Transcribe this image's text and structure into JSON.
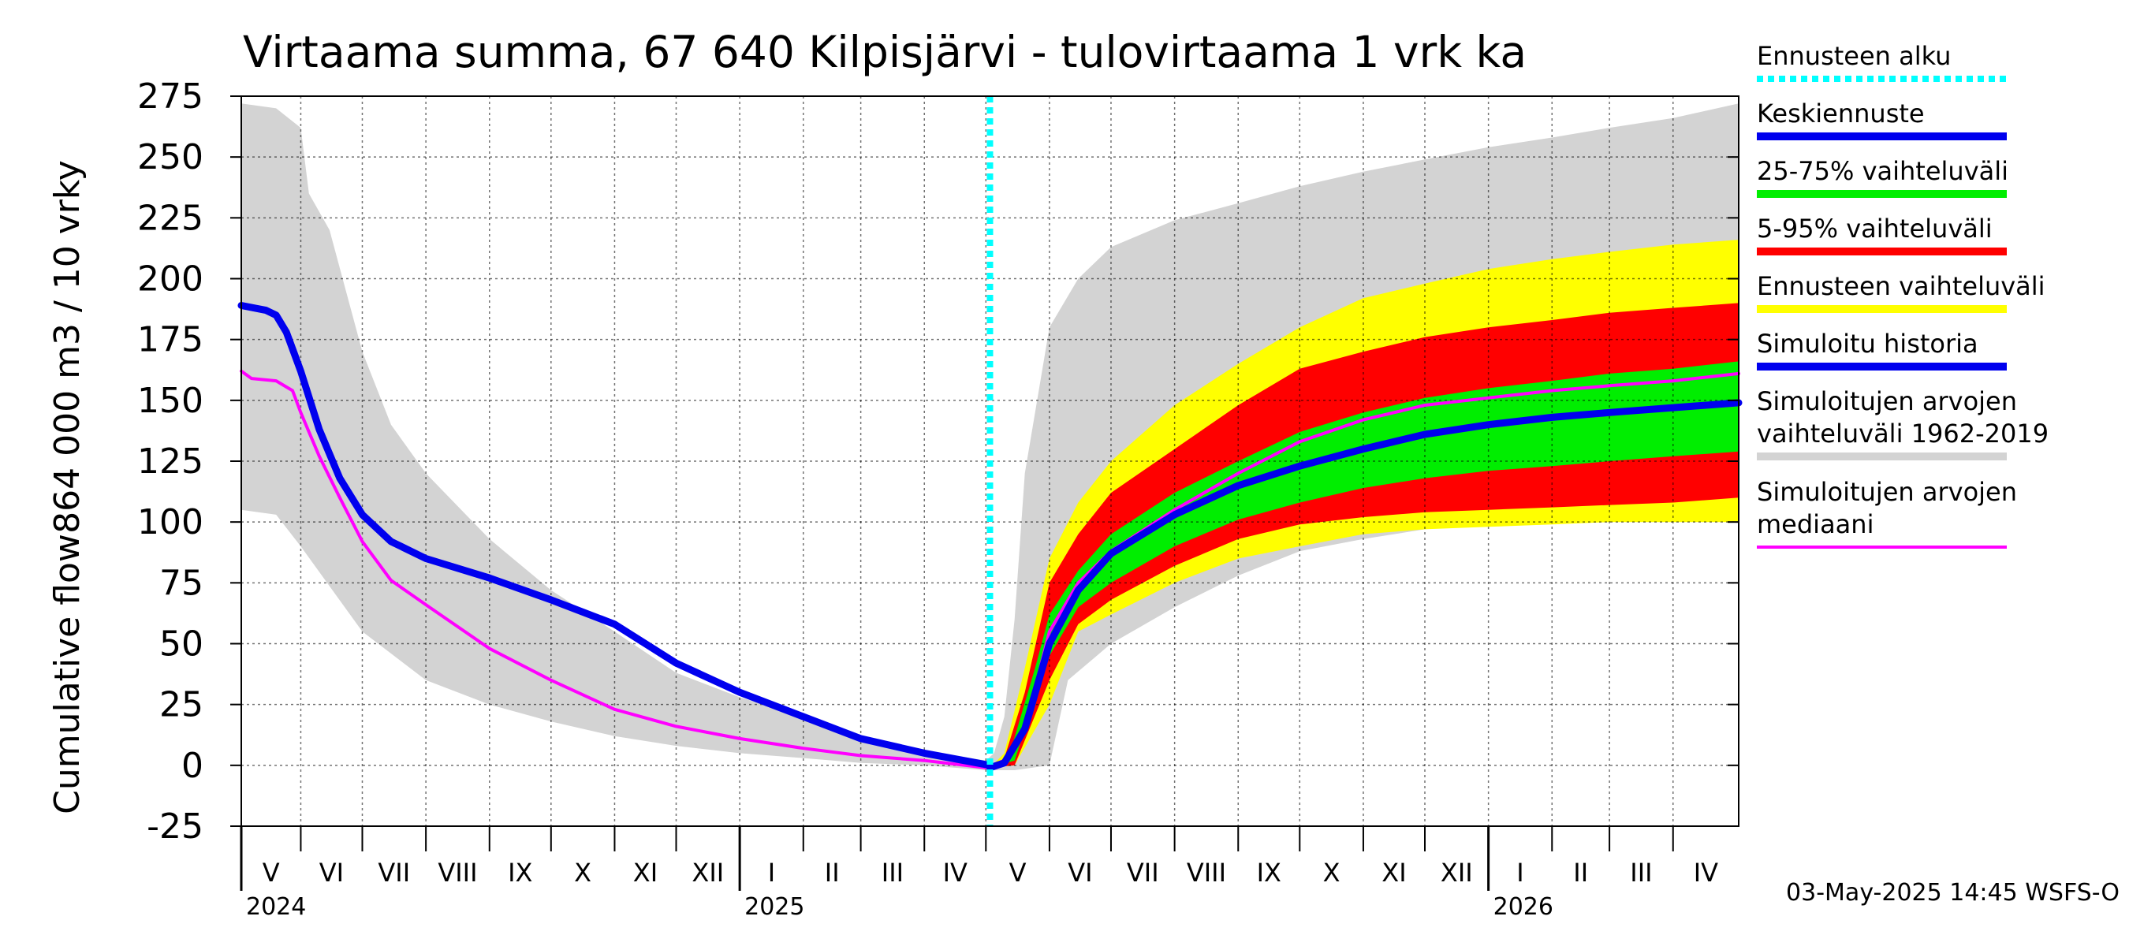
{
  "chart_data": {
    "type": "area",
    "title": "Virtaama summa, 67 640 Kilpisjärvi - tulovirtaama 1 vrk ka",
    "ylabel_top": "864 000 m3 / 10 vrky",
    "ylabel_bottom": "Cumulative flow",
    "ylim": [
      -25,
      275
    ],
    "yticks": [
      -25,
      0,
      25,
      50,
      75,
      100,
      125,
      150,
      175,
      200,
      225,
      250,
      275
    ],
    "xlim": [
      "2024-05-03",
      "2026-05-03"
    ],
    "grid": true,
    "legend_position": "right",
    "forecast_start": "2025-05-03",
    "months": [
      {
        "label": "V",
        "start": "2024-05-01"
      },
      {
        "label": "VI",
        "start": "2024-06-01"
      },
      {
        "label": "VII",
        "start": "2024-07-01"
      },
      {
        "label": "VIII",
        "start": "2024-08-01"
      },
      {
        "label": "IX",
        "start": "2024-09-01"
      },
      {
        "label": "X",
        "start": "2024-10-01"
      },
      {
        "label": "XI",
        "start": "2024-11-01"
      },
      {
        "label": "XII",
        "start": "2024-12-01"
      },
      {
        "label": "I",
        "start": "2025-01-01"
      },
      {
        "label": "II",
        "start": "2025-02-01"
      },
      {
        "label": "III",
        "start": "2025-03-01"
      },
      {
        "label": "IV",
        "start": "2025-04-01"
      },
      {
        "label": "V",
        "start": "2025-05-01"
      },
      {
        "label": "VI",
        "start": "2025-06-01"
      },
      {
        "label": "VII",
        "start": "2025-07-01"
      },
      {
        "label": "VIII",
        "start": "2025-08-01"
      },
      {
        "label": "IX",
        "start": "2025-09-01"
      },
      {
        "label": "X",
        "start": "2025-10-01"
      },
      {
        "label": "XI",
        "start": "2025-11-01"
      },
      {
        "label": "XII",
        "start": "2025-12-01"
      },
      {
        "label": "I",
        "start": "2026-01-01"
      },
      {
        "label": "II",
        "start": "2026-02-01"
      },
      {
        "label": "III",
        "start": "2026-03-01"
      },
      {
        "label": "IV",
        "start": "2026-04-01"
      }
    ],
    "years": [
      {
        "label": "2024",
        "start": "2024-05-03"
      },
      {
        "label": "2025",
        "start": "2025-01-01"
      },
      {
        "label": "2026",
        "start": "2026-01-01"
      }
    ],
    "bands": [
      {
        "name": "Simuloitujen arvojen vaihteluväli 1962-2019",
        "color": "#d3d3d3",
        "upper": [
          [
            "2024-05-03",
            272
          ],
          [
            "2024-05-20",
            270
          ],
          [
            "2024-06-01",
            262
          ],
          [
            "2024-06-05",
            235
          ],
          [
            "2024-06-15",
            220
          ],
          [
            "2024-07-01",
            170
          ],
          [
            "2024-07-15",
            140
          ],
          [
            "2024-08-01",
            120
          ],
          [
            "2024-09-01",
            93
          ],
          [
            "2024-10-01",
            72
          ],
          [
            "2024-11-01",
            55
          ],
          [
            "2024-12-01",
            38
          ],
          [
            "2025-01-01",
            28
          ],
          [
            "2025-02-01",
            20
          ],
          [
            "2025-03-01",
            12
          ],
          [
            "2025-04-01",
            6
          ],
          [
            "2025-05-01",
            2
          ],
          [
            "2025-05-05",
            5
          ],
          [
            "2025-05-10",
            20
          ],
          [
            "2025-05-15",
            60
          ],
          [
            "2025-05-20",
            120
          ],
          [
            "2025-06-01",
            180
          ],
          [
            "2025-06-15",
            200
          ],
          [
            "2025-07-01",
            213
          ],
          [
            "2025-08-01",
            224
          ],
          [
            "2025-09-01",
            231
          ],
          [
            "2025-10-01",
            238
          ],
          [
            "2025-11-01",
            244
          ],
          [
            "2025-12-01",
            249
          ],
          [
            "2026-01-01",
            254
          ],
          [
            "2026-02-01",
            258
          ],
          [
            "2026-03-01",
            262
          ],
          [
            "2026-04-01",
            266
          ],
          [
            "2026-05-03",
            272
          ]
        ],
        "lower": [
          [
            "2024-05-03",
            105
          ],
          [
            "2024-05-20",
            103
          ],
          [
            "2024-06-01",
            90
          ],
          [
            "2024-07-01",
            55
          ],
          [
            "2024-08-01",
            35
          ],
          [
            "2024-09-01",
            25
          ],
          [
            "2024-10-01",
            18
          ],
          [
            "2024-11-01",
            12
          ],
          [
            "2024-12-01",
            8
          ],
          [
            "2025-01-01",
            5
          ],
          [
            "2025-02-01",
            3
          ],
          [
            "2025-03-01",
            1
          ],
          [
            "2025-04-01",
            0
          ],
          [
            "2025-05-01",
            -2
          ],
          [
            "2025-05-15",
            -2
          ],
          [
            "2025-06-01",
            0
          ],
          [
            "2025-06-10",
            35
          ],
          [
            "2025-07-01",
            50
          ],
          [
            "2025-08-01",
            65
          ],
          [
            "2025-09-01",
            78
          ],
          [
            "2025-10-01",
            88
          ],
          [
            "2025-11-01",
            93
          ],
          [
            "2025-12-01",
            97
          ],
          [
            "2026-01-01",
            99
          ],
          [
            "2026-02-01",
            100
          ],
          [
            "2026-03-01",
            101
          ],
          [
            "2026-04-01",
            102
          ],
          [
            "2026-05-03",
            102
          ]
        ]
      },
      {
        "name": "Ennusteen vaihteluväli",
        "color": "#ffff00",
        "upper": [
          [
            "2025-05-03",
            -1
          ],
          [
            "2025-05-10",
            5
          ],
          [
            "2025-05-20",
            40
          ],
          [
            "2025-06-01",
            85
          ],
          [
            "2025-06-15",
            108
          ],
          [
            "2025-07-01",
            125
          ],
          [
            "2025-08-01",
            148
          ],
          [
            "2025-09-01",
            165
          ],
          [
            "2025-10-01",
            180
          ],
          [
            "2025-11-01",
            192
          ],
          [
            "2025-12-01",
            198
          ],
          [
            "2026-01-01",
            204
          ],
          [
            "2026-02-01",
            208
          ],
          [
            "2026-03-01",
            211
          ],
          [
            "2026-04-01",
            214
          ],
          [
            "2026-05-03",
            216
          ]
        ],
        "lower": [
          [
            "2025-05-03",
            -1
          ],
          [
            "2025-05-15",
            0
          ],
          [
            "2025-06-01",
            25
          ],
          [
            "2025-06-15",
            55
          ],
          [
            "2025-07-01",
            62
          ],
          [
            "2025-08-01",
            75
          ],
          [
            "2025-09-01",
            85
          ],
          [
            "2025-10-01",
            90
          ],
          [
            "2025-11-01",
            95
          ],
          [
            "2025-12-01",
            97
          ],
          [
            "2026-01-01",
            98
          ],
          [
            "2026-02-01",
            99
          ],
          [
            "2026-03-01",
            100
          ],
          [
            "2026-04-01",
            100
          ],
          [
            "2026-05-03",
            100
          ]
        ]
      },
      {
        "name": "5-95% vaihteluväli",
        "color": "#ff0000",
        "upper": [
          [
            "2025-05-03",
            -1
          ],
          [
            "2025-05-10",
            3
          ],
          [
            "2025-05-20",
            30
          ],
          [
            "2025-06-01",
            75
          ],
          [
            "2025-06-15",
            95
          ],
          [
            "2025-07-01",
            112
          ],
          [
            "2025-08-01",
            130
          ],
          [
            "2025-09-01",
            148
          ],
          [
            "2025-10-01",
            163
          ],
          [
            "2025-11-01",
            170
          ],
          [
            "2025-12-01",
            176
          ],
          [
            "2026-01-01",
            180
          ],
          [
            "2026-02-01",
            183
          ],
          [
            "2026-03-01",
            186
          ],
          [
            "2026-04-01",
            188
          ],
          [
            "2026-05-03",
            190
          ]
        ],
        "lower": [
          [
            "2025-05-03",
            -1
          ],
          [
            "2025-05-15",
            0
          ],
          [
            "2025-06-01",
            35
          ],
          [
            "2025-06-15",
            58
          ],
          [
            "2025-07-01",
            68
          ],
          [
            "2025-08-01",
            82
          ],
          [
            "2025-09-01",
            93
          ],
          [
            "2025-10-01",
            99
          ],
          [
            "2025-11-01",
            102
          ],
          [
            "2025-12-01",
            104
          ],
          [
            "2026-01-01",
            105
          ],
          [
            "2026-02-01",
            106
          ],
          [
            "2026-03-01",
            107
          ],
          [
            "2026-04-01",
            108
          ],
          [
            "2026-05-03",
            110
          ]
        ]
      },
      {
        "name": "25-75% vaihteluväli",
        "color": "#00ee00",
        "upper": [
          [
            "2025-05-03",
            -1
          ],
          [
            "2025-05-12",
            3
          ],
          [
            "2025-05-25",
            40
          ],
          [
            "2025-06-01",
            62
          ],
          [
            "2025-06-15",
            80
          ],
          [
            "2025-07-01",
            95
          ],
          [
            "2025-08-01",
            112
          ],
          [
            "2025-09-01",
            125
          ],
          [
            "2025-10-01",
            137
          ],
          [
            "2025-11-01",
            145
          ],
          [
            "2025-12-01",
            151
          ],
          [
            "2026-01-01",
            155
          ],
          [
            "2026-02-01",
            158
          ],
          [
            "2026-03-01",
            161
          ],
          [
            "2026-04-01",
            163
          ],
          [
            "2026-05-03",
            166
          ]
        ],
        "lower": [
          [
            "2025-05-03",
            -1
          ],
          [
            "2025-05-15",
            2
          ],
          [
            "2025-06-01",
            45
          ],
          [
            "2025-06-15",
            65
          ],
          [
            "2025-07-01",
            75
          ],
          [
            "2025-08-01",
            90
          ],
          [
            "2025-09-01",
            101
          ],
          [
            "2025-10-01",
            108
          ],
          [
            "2025-11-01",
            114
          ],
          [
            "2025-12-01",
            118
          ],
          [
            "2026-01-01",
            121
          ],
          [
            "2026-02-01",
            123
          ],
          [
            "2026-03-01",
            125
          ],
          [
            "2026-04-01",
            127
          ],
          [
            "2026-05-03",
            129
          ]
        ]
      }
    ],
    "series": [
      {
        "name": "Simuloitujen arvojen mediaani",
        "color": "#ff00ff",
        "width": 4,
        "points": [
          [
            "2024-05-03",
            162
          ],
          [
            "2024-05-08",
            159
          ],
          [
            "2024-05-20",
            158
          ],
          [
            "2024-05-28",
            154
          ],
          [
            "2024-06-01",
            145
          ],
          [
            "2024-06-10",
            127
          ],
          [
            "2024-06-20",
            110
          ],
          [
            "2024-07-01",
            92
          ],
          [
            "2024-07-15",
            76
          ],
          [
            "2024-08-01",
            66
          ],
          [
            "2024-08-20",
            55
          ],
          [
            "2024-09-01",
            48
          ],
          [
            "2024-10-01",
            35
          ],
          [
            "2024-11-01",
            23
          ],
          [
            "2024-12-01",
            16
          ],
          [
            "2025-01-01",
            11
          ],
          [
            "2025-02-01",
            7
          ],
          [
            "2025-03-01",
            4
          ],
          [
            "2025-04-01",
            2
          ],
          [
            "2025-05-01",
            -1
          ],
          [
            "2025-05-10",
            2
          ],
          [
            "2025-05-20",
            15
          ],
          [
            "2025-06-01",
            55
          ],
          [
            "2025-06-15",
            75
          ],
          [
            "2025-07-01",
            88
          ],
          [
            "2025-08-01",
            105
          ],
          [
            "2025-09-01",
            120
          ],
          [
            "2025-10-01",
            133
          ],
          [
            "2025-11-01",
            142
          ],
          [
            "2025-12-01",
            148
          ],
          [
            "2026-01-01",
            151
          ],
          [
            "2026-02-01",
            154
          ],
          [
            "2026-03-01",
            156
          ],
          [
            "2026-04-01",
            158
          ],
          [
            "2026-05-03",
            161
          ]
        ]
      },
      {
        "name": "Simuloitu historia",
        "color": "#0000ee",
        "width": 9,
        "points": [
          [
            "2024-05-03",
            189
          ],
          [
            "2024-05-15",
            187
          ],
          [
            "2024-05-20",
            185
          ],
          [
            "2024-05-25",
            178
          ],
          [
            "2024-06-01",
            162
          ],
          [
            "2024-06-10",
            138
          ],
          [
            "2024-06-20",
            118
          ],
          [
            "2024-07-01",
            103
          ],
          [
            "2024-07-15",
            92
          ],
          [
            "2024-08-01",
            85
          ],
          [
            "2024-09-01",
            77
          ],
          [
            "2024-10-01",
            68
          ],
          [
            "2024-11-01",
            58
          ],
          [
            "2024-12-01",
            42
          ],
          [
            "2025-01-01",
            30
          ],
          [
            "2025-02-01",
            20
          ],
          [
            "2025-03-01",
            11
          ],
          [
            "2025-04-01",
            5
          ],
          [
            "2025-05-03",
            0
          ]
        ]
      },
      {
        "name": "Keskiennuste",
        "color": "#0000ee",
        "width": 9,
        "points": [
          [
            "2025-05-03",
            -1
          ],
          [
            "2025-05-10",
            1
          ],
          [
            "2025-05-20",
            15
          ],
          [
            "2025-06-01",
            50
          ],
          [
            "2025-06-15",
            72
          ],
          [
            "2025-07-01",
            87
          ],
          [
            "2025-08-01",
            103
          ],
          [
            "2025-09-01",
            115
          ],
          [
            "2025-10-01",
            123
          ],
          [
            "2025-11-01",
            130
          ],
          [
            "2025-12-01",
            136
          ],
          [
            "2026-01-01",
            140
          ],
          [
            "2026-02-01",
            143
          ],
          [
            "2026-03-01",
            145
          ],
          [
            "2026-04-01",
            147
          ],
          [
            "2026-05-03",
            149
          ]
        ]
      }
    ]
  },
  "legend": [
    {
      "label": "Ennusteen alku",
      "color": "#00ffff",
      "style": "dotted"
    },
    {
      "label": "Keskiennuste",
      "color": "#0000ee",
      "style": "solid"
    },
    {
      "label": "25-75% vaihteluväli",
      "color": "#00ee00",
      "style": "solid"
    },
    {
      "label": "5-95% vaihteluväli",
      "color": "#ff0000",
      "style": "solid"
    },
    {
      "label": "Ennusteen vaihteluväli",
      "color": "#ffff00",
      "style": "solid"
    },
    {
      "label": "Simuloitu historia",
      "color": "#0000ee",
      "style": "solid"
    },
    {
      "label": "Simuloitujen arvojen\nvaihteluväli 1962-2019",
      "color": "#d3d3d3",
      "style": "solid"
    },
    {
      "label": "Simuloitujen arvojen\nmediaani",
      "color": "#ff00ff",
      "style": "thin"
    }
  ],
  "footer": "03-May-2025 14:45 WSFS-O"
}
